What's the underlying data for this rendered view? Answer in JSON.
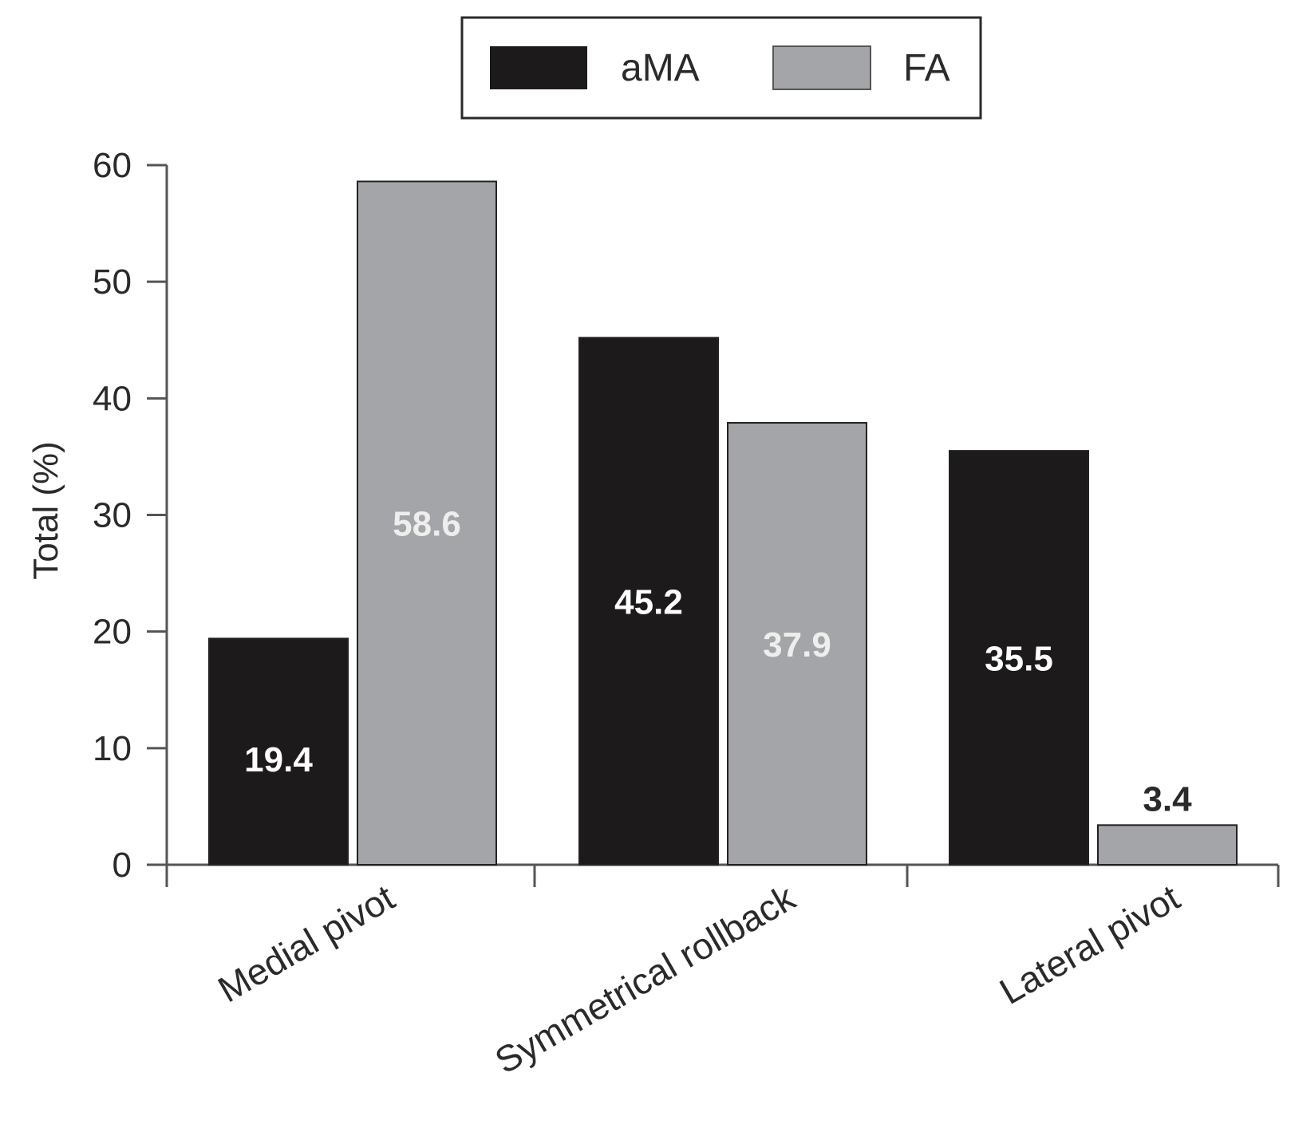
{
  "chart_data": {
    "type": "bar",
    "title": "",
    "xlabel": "",
    "ylabel": "Total (%)",
    "ylim": [
      0,
      60
    ],
    "yticks": [
      0,
      10,
      20,
      30,
      40,
      50,
      60
    ],
    "grid": false,
    "legend_position": "top-center",
    "categories": [
      "Medial pivot",
      "Symmetrical rollback",
      "Lateral pivot"
    ],
    "series": [
      {
        "name": "aMA",
        "color": "#1c1a1b",
        "values": [
          19.4,
          45.2,
          35.5
        ],
        "labels": [
          "19.4",
          "45.2",
          "35.5"
        ],
        "label_color": "#ffffff"
      },
      {
        "name": "FA",
        "color": "#a4a5a8",
        "values": [
          58.6,
          37.9,
          3.4
        ],
        "labels": [
          "58.6",
          "37.9",
          "3.4"
        ],
        "label_color": "#eeeeee"
      }
    ]
  }
}
